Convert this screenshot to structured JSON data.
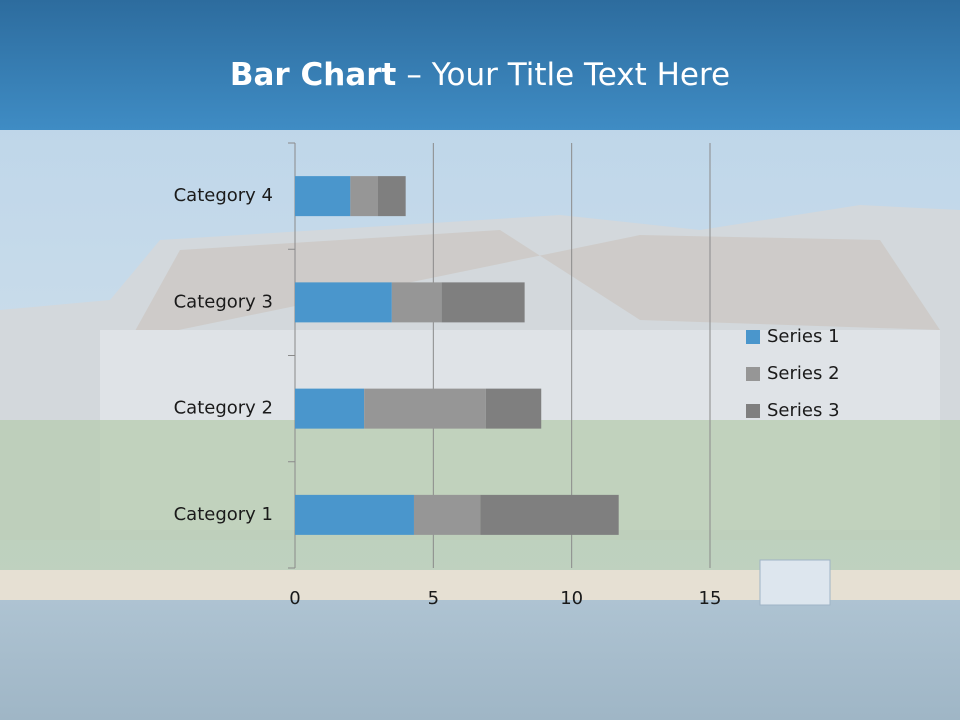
{
  "chart_data": {
    "type": "stacked-bar-horizontal",
    "title": {
      "bold": "Bar Chart",
      "rest": "– Your Title Text Here"
    },
    "categories": [
      "Category 1",
      "Category 2",
      "Category 3",
      "Category 4"
    ],
    "series": [
      {
        "name": "Series 1",
        "color": "#4a96cc",
        "values": [
          4.3,
          2.5,
          3.5,
          2
        ]
      },
      {
        "name": "Series 2",
        "color": "#969696",
        "values": [
          2.4,
          4.4,
          1.8,
          1
        ]
      },
      {
        "name": "Series 3",
        "color": "#7f7f7f",
        "values": [
          5,
          2,
          3,
          1
        ]
      }
    ],
    "xlim": [
      0,
      15
    ],
    "xticks": [
      0,
      5,
      10,
      15
    ],
    "grid": true,
    "legend": "right"
  }
}
